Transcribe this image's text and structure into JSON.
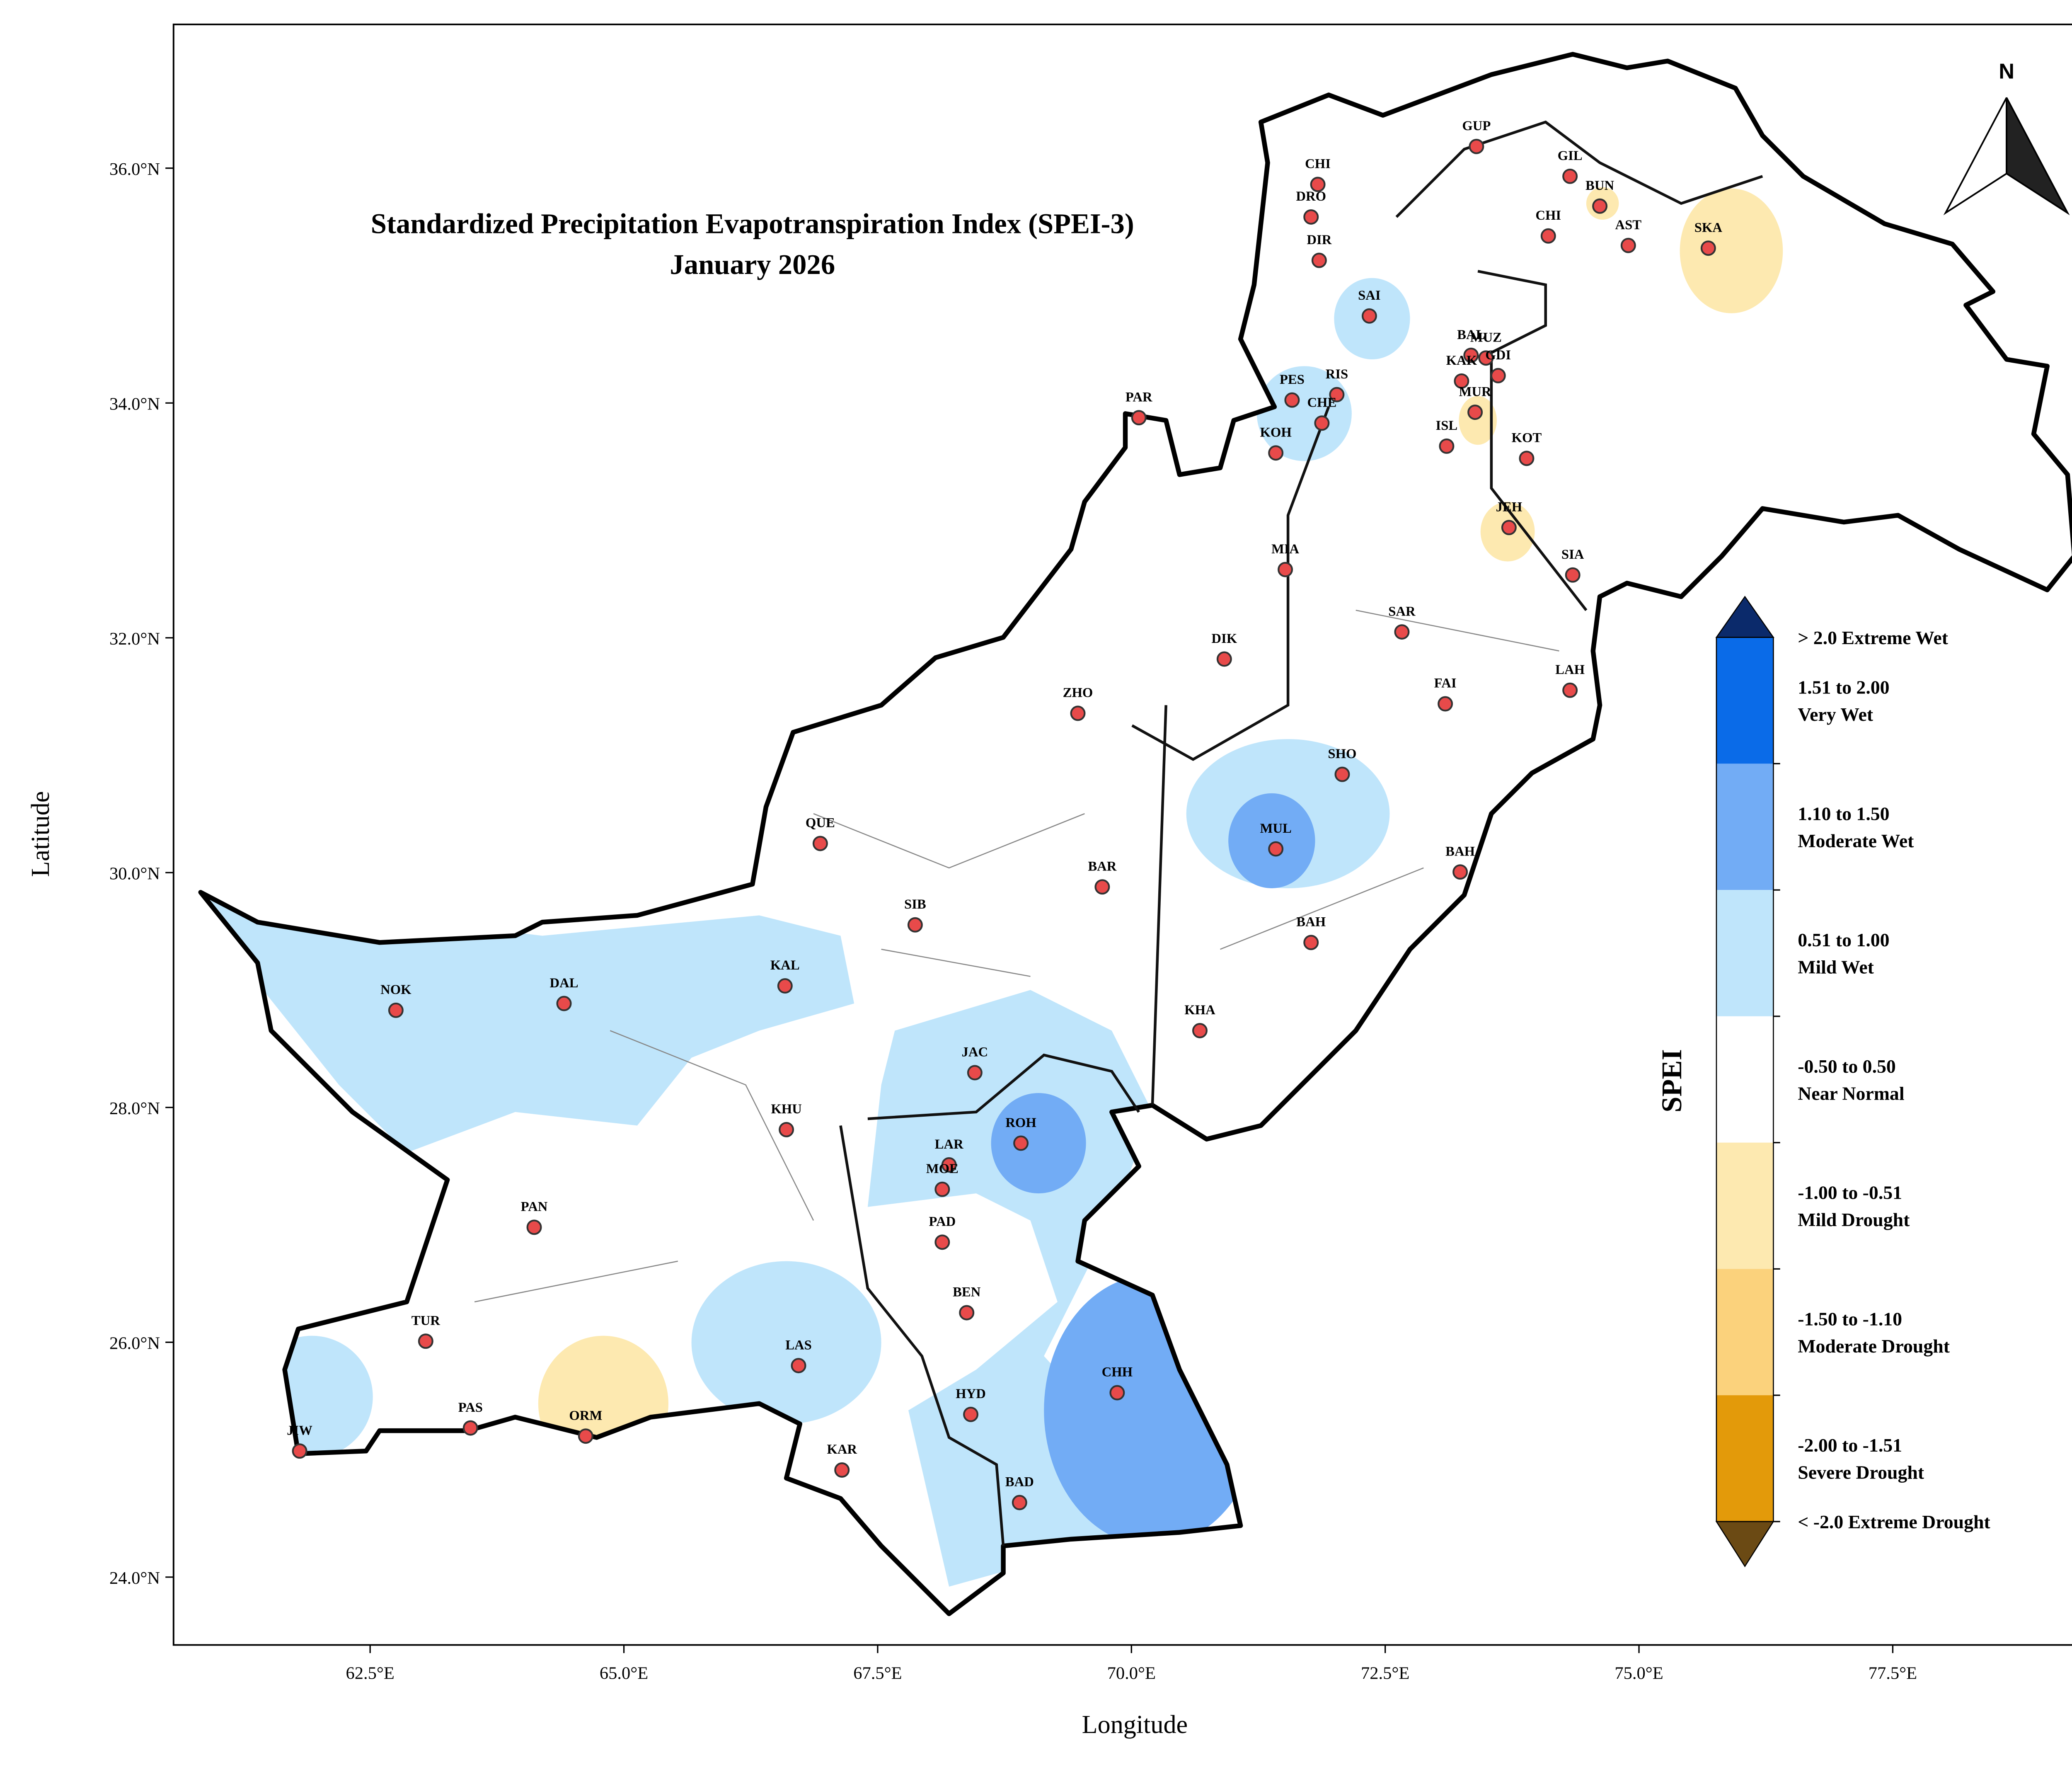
{
  "map": {
    "title": "Standardized Precipitation Evapotranspiration Index (SPEI-3)",
    "subtitle": "January 2026",
    "x_label": "Longitude",
    "y_label": "Latitude",
    "north": "N",
    "xticks": [
      {
        "value": 62.5,
        "label": "62.5°E"
      },
      {
        "value": 65.0,
        "label": "65.0°E"
      },
      {
        "value": 67.5,
        "label": "67.5°E"
      },
      {
        "value": 70.0,
        "label": "70.0°E"
      },
      {
        "value": 72.5,
        "label": "72.5°E"
      },
      {
        "value": 75.0,
        "label": "75.0°E"
      },
      {
        "value": 77.5,
        "label": "77.5°E"
      }
    ],
    "yticks": [
      {
        "value": 24,
        "label": "24.0°N"
      },
      {
        "value": 26,
        "label": "26.0°N"
      },
      {
        "value": 28,
        "label": "28.0°N"
      },
      {
        "value": 30,
        "label": "30.0°N"
      },
      {
        "value": 32,
        "label": "32.0°N"
      },
      {
        "value": 34,
        "label": "34.0°N"
      },
      {
        "value": 36,
        "label": "36.0°N"
      }
    ],
    "stations": [
      "GUP",
      "CHI",
      "GIL",
      "DRO",
      "BUN",
      "CHI",
      "AST",
      "SKA",
      "DIR",
      "SAI",
      "BAL",
      "MUZ",
      "KAK",
      "GDI",
      "PES",
      "RIS",
      "CHE",
      "MUR",
      "PAR",
      "ISL",
      "KOT",
      "KOH",
      "JEH",
      "MIA",
      "SIA",
      "SAR",
      "DIK",
      "LAH",
      "FAI",
      "ZHO",
      "SHO",
      "QUE",
      "MUL",
      "BAH",
      "BAR",
      "SIB",
      "BAH",
      "NOK",
      "DAL",
      "KAL",
      "KHA",
      "JAC",
      "KHU",
      "ROH",
      "LAR",
      "MOE",
      "PAN",
      "PAD",
      "BEN",
      "TUR",
      "LAS",
      "CHH",
      "PAS",
      "HYD",
      "JIW",
      "ORM",
      "KAR",
      "BAD"
    ],
    "legend": {
      "title": "SPEI",
      "items": [
        {
          "label": "> 2.0 Extreme Wet",
          "color": "#0b2a6b"
        },
        {
          "label": "1.51 to 2.00",
          "sub": "Very Wet",
          "color": "#0a6be8"
        },
        {
          "label": "1.10 to 1.50",
          "sub": "Moderate Wet",
          "color": "#72acf5"
        },
        {
          "label": "0.51 to 1.00",
          "sub": "Mild Wet",
          "color": "#bfe5fb"
        },
        {
          "label": "-0.50 to 0.50",
          "sub": "Near Normal",
          "color": "#ffffff"
        },
        {
          "label": "-1.00 to -0.51",
          "sub": "Mild Drought",
          "color": "#fde9b0"
        },
        {
          "label": "-1.50 to -1.10",
          "sub": "Moderate Drought",
          "color": "#fbd27c"
        },
        {
          "label": "-2.00 to -1.51",
          "sub": "Severe Drought",
          "color": "#e39a0a"
        },
        {
          "label": "< -2.0 Extreme Drought",
          "color": "#6b4a14"
        }
      ]
    }
  }
}
